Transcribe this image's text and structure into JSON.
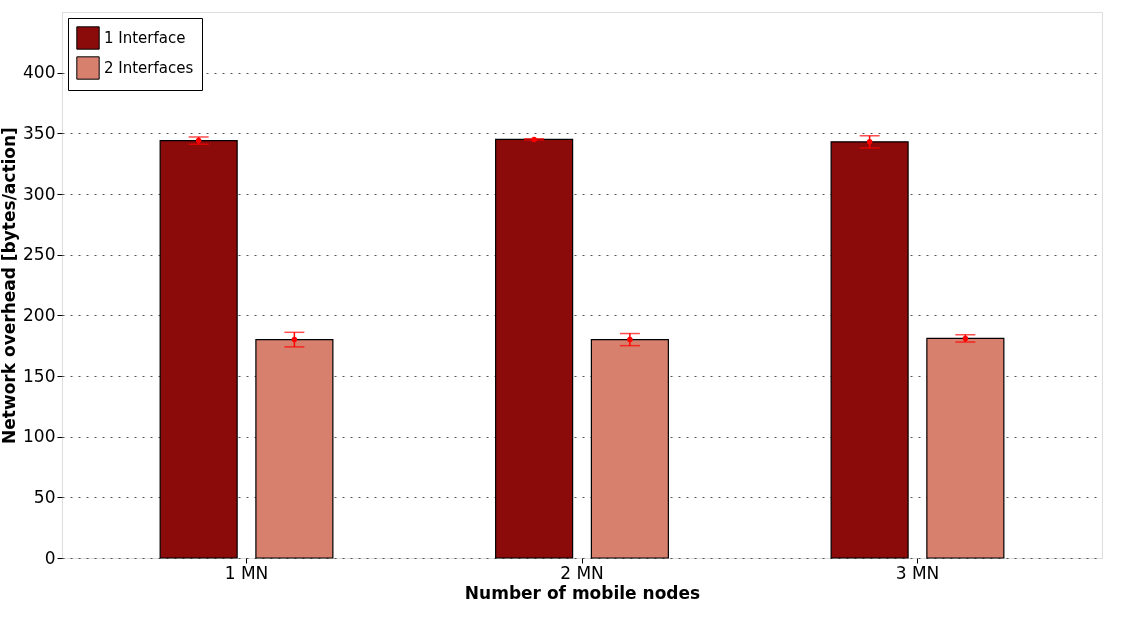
{
  "chart_data": {
    "type": "bar",
    "xlabel": "Number of mobile nodes",
    "ylabel": "Network overhead [bytes/action]",
    "categories": [
      "1 MN",
      "2 MN",
      "3 MN"
    ],
    "series": [
      {
        "name": "1 Interface",
        "color": "#8b0b0b",
        "values": [
          344,
          345,
          343
        ],
        "errors": [
          3,
          0.5,
          5
        ]
      },
      {
        "name": "2 Interfaces",
        "color": "#d6806d",
        "values": [
          180,
          180,
          181
        ],
        "errors": [
          6,
          5,
          3
        ]
      }
    ],
    "ylim": [
      0,
      450
    ],
    "yticks": [
      0,
      50,
      100,
      150,
      200,
      250,
      300,
      350,
      400
    ],
    "grid": "y",
    "legend": "top left"
  }
}
